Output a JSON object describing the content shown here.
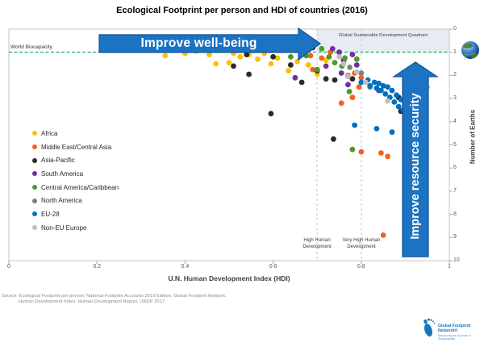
{
  "title": "Ecological Footprint per person and HDI of countries (2016)",
  "arrows": {
    "well_being_label": "Improve well-being",
    "resource_security_label": "Improve resource security",
    "fill_color": "#1C73C2",
    "edge_color": "#0F529C"
  },
  "annotations": {
    "world_biocapacity": "World Biocapacity",
    "quadrant_label": "Global Sustainable Development Quadrant",
    "quadrant_fill": "#E9EBF2",
    "high_hd": "High Human\nDevelopment",
    "very_high_hd": "Very High Human\nDevelopment",
    "biocapacity_line_color": "#00A550",
    "threshold_line_color": "#A9CCEA"
  },
  "axes": {
    "x": {
      "label": "U.N. Human Development Index  (HDI)",
      "ticks": [
        {
          "v": 0,
          "t": "0"
        },
        {
          "v": 0.2,
          "t": "0.2"
        },
        {
          "v": 0.4,
          "t": "0.4"
        },
        {
          "v": 0.6,
          "t": "0.6"
        },
        {
          "v": 0.8,
          "t": "0.8"
        },
        {
          "v": 1,
          "t": "1"
        }
      ]
    },
    "y": {
      "label": "Number of Earths",
      "ticks": [
        {
          "v": 0,
          "t": "0"
        },
        {
          "v": 1,
          "t": "1"
        },
        {
          "v": 2,
          "t": "2"
        },
        {
          "v": 3,
          "t": "3"
        },
        {
          "v": 4,
          "t": "4"
        },
        {
          "v": 5,
          "t": "5"
        },
        {
          "v": 6,
          "t": "6"
        },
        {
          "v": 7,
          "t": "7"
        },
        {
          "v": 8,
          "t": "8"
        },
        {
          "v": 9,
          "t": "9"
        },
        {
          "v": 10,
          "t": "10"
        }
      ]
    }
  },
  "legend": [
    {
      "label": "Africa",
      "color": "#FFC000"
    },
    {
      "label": "Middle East/Central Asia",
      "color": "#F4611E"
    },
    {
      "label": "Asia-Pacific",
      "color": "#2B2B2B"
    },
    {
      "label": "South America",
      "color": "#7030A0"
    },
    {
      "label": "Central America/Caribbean",
      "color": "#4C9A2A"
    },
    {
      "label": "North America",
      "color": "#7F7F7F"
    },
    {
      "label": "EU-28",
      "color": "#0070C0"
    },
    {
      "label": "Non-EU Europe",
      "color": "#BFBFBF"
    }
  ],
  "source_lines": [
    "Source: Ecological Footprint per person: National Footprint Accounts 2019 Edition, Global Footprint Network.",
    "Human Development Index: Human Development Report, UNDP 2017"
  ],
  "logo": {
    "name": "Global Footprint Network®",
    "tagline": "Advancing the Science of Sustainability",
    "color": "#1B75BB"
  },
  "chart_data": {
    "type": "scatter",
    "title": "Ecological Footprint per person and HDI of countries (2016)",
    "xlabel": "U.N. Human Development Index (HDI)",
    "ylabel": "Number of Earths",
    "xlim": [
      0,
      1
    ],
    "ylim": [
      0,
      10
    ],
    "y_inverted": true,
    "grid": false,
    "legend_position": "middle-left",
    "reference_lines": {
      "world_biocapacity_earths": 1,
      "high_human_development_hdi": 0.7,
      "very_high_human_development_hdi": 0.8
    },
    "series": [
      {
        "name": "Africa",
        "color": "#FFC000",
        "points": [
          [
            0.355,
            1.15
          ],
          [
            0.4,
            1.05
          ],
          [
            0.425,
            0.95
          ],
          [
            0.455,
            1.1
          ],
          [
            0.47,
            1.5
          ],
          [
            0.5,
            1.45
          ],
          [
            0.51,
            1.05
          ],
          [
            0.525,
            1.2
          ],
          [
            0.545,
            1.1
          ],
          [
            0.565,
            1.3
          ],
          [
            0.58,
            1.05
          ],
          [
            0.595,
            1.5
          ],
          [
            0.61,
            1.25
          ],
          [
            0.635,
            1.8
          ],
          [
            0.655,
            1.4
          ],
          [
            0.68,
            1.55
          ],
          [
            0.7,
            1.95
          ],
          [
            0.72,
            1.35
          ]
        ]
      },
      {
        "name": "Middle East/Central Asia",
        "color": "#F4611E",
        "points": [
          [
            0.665,
            1.05
          ],
          [
            0.685,
            1.15
          ],
          [
            0.69,
            1.75
          ],
          [
            0.71,
            1.25
          ],
          [
            0.73,
            1.0
          ],
          [
            0.76,
            1.4
          ],
          [
            0.77,
            2.0
          ],
          [
            0.785,
            1.9
          ],
          [
            0.8,
            2.1
          ],
          [
            0.795,
            2.5
          ],
          [
            0.78,
            2.95
          ],
          [
            0.755,
            3.2
          ],
          [
            0.8,
            5.3
          ],
          [
            0.845,
            5.35
          ],
          [
            0.86,
            5.5
          ],
          [
            0.85,
            8.9
          ]
        ]
      },
      {
        "name": "Asia-Pacific",
        "color": "#2B2B2B",
        "points": [
          [
            0.54,
            1.1
          ],
          [
            0.51,
            1.6
          ],
          [
            0.545,
            1.95
          ],
          [
            0.6,
            1.2
          ],
          [
            0.595,
            3.65
          ],
          [
            0.64,
            1.55
          ],
          [
            0.665,
            2.3
          ],
          [
            0.69,
            0.8
          ],
          [
            0.7,
            1.8
          ],
          [
            0.72,
            2.15
          ],
          [
            0.737,
            4.75
          ],
          [
            0.74,
            2.2
          ],
          [
            0.78,
            2.15
          ],
          [
            0.885,
            2.95
          ],
          [
            0.89,
            3.55
          ]
        ]
      },
      {
        "name": "South America",
        "color": "#7030A0",
        "points": [
          [
            0.65,
            2.1
          ],
          [
            0.72,
            1.6
          ],
          [
            0.735,
            0.85
          ],
          [
            0.75,
            1.0
          ],
          [
            0.76,
            1.35
          ],
          [
            0.755,
            1.9
          ],
          [
            0.77,
            2.4
          ],
          [
            0.78,
            1.1
          ],
          [
            0.79,
            1.55
          ],
          [
            0.84,
            2.65
          ]
        ]
      },
      {
        "name": "Central America/Caribbean",
        "color": "#4C9A2A",
        "points": [
          [
            0.64,
            1.2
          ],
          [
            0.675,
            1.15
          ],
          [
            0.7,
            1.75
          ],
          [
            0.71,
            0.85
          ],
          [
            0.727,
            1.2
          ],
          [
            0.74,
            1.45
          ],
          [
            0.756,
            1.6
          ],
          [
            0.763,
            1.25
          ],
          [
            0.773,
            2.7
          ],
          [
            0.79,
            1.3
          ],
          [
            0.78,
            5.2
          ]
        ]
      },
      {
        "name": "North America",
        "color": "#7F7F7F",
        "points": [
          [
            0.774,
            1.65
          ],
          [
            0.8,
            1.9
          ],
          [
            0.82,
            2.5
          ],
          [
            0.915,
            4.85
          ],
          [
            0.92,
            5.0
          ]
        ]
      },
      {
        "name": "EU-28",
        "color": "#0070C0",
        "points": [
          [
            0.785,
            4.15
          ],
          [
            0.8,
            2.3
          ],
          [
            0.815,
            2.2
          ],
          [
            0.82,
            2.45
          ],
          [
            0.83,
            2.3
          ],
          [
            0.835,
            2.55
          ],
          [
            0.835,
            4.3
          ],
          [
            0.84,
            2.35
          ],
          [
            0.845,
            2.65
          ],
          [
            0.85,
            2.45
          ],
          [
            0.855,
            2.8
          ],
          [
            0.86,
            2.5
          ],
          [
            0.865,
            2.95
          ],
          [
            0.87,
            2.65
          ],
          [
            0.87,
            4.45
          ],
          [
            0.875,
            3.15
          ],
          [
            0.88,
            2.85
          ],
          [
            0.885,
            3.35
          ],
          [
            0.89,
            3.05
          ],
          [
            0.895,
            3.5
          ],
          [
            0.9,
            3.25
          ],
          [
            0.905,
            3.75
          ],
          [
            0.91,
            3.45
          ],
          [
            0.92,
            3.65
          ],
          [
            0.925,
            4.05
          ],
          [
            0.93,
            3.9
          ]
        ]
      },
      {
        "name": "Non-EU Europe",
        "color": "#BFBFBF",
        "points": [
          [
            0.75,
            1.2
          ],
          [
            0.76,
            1.5
          ],
          [
            0.77,
            2.05
          ],
          [
            0.79,
            1.85
          ],
          [
            0.81,
            2.3
          ],
          [
            0.86,
            3.1
          ],
          [
            0.93,
            3.4
          ],
          [
            0.95,
            2.5
          ]
        ]
      }
    ]
  }
}
